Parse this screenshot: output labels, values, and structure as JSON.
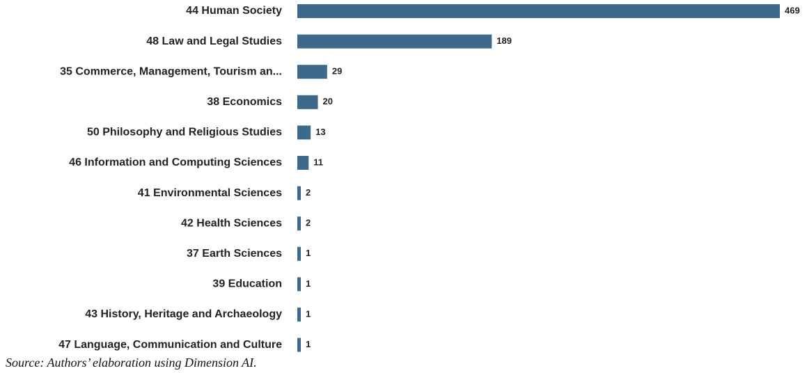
{
  "chart_data": {
    "type": "bar",
    "orientation": "horizontal",
    "categories": [
      "44 Human Society",
      "48 Law and Legal Studies",
      "35 Commerce, Management, Tourism an...",
      "38 Economics",
      "50 Philosophy and Religious Studies",
      "46 Information and Computing Sciences",
      "41 Environmental Sciences",
      "42 Health Sciences",
      "37 Earth Sciences",
      "39 Education",
      "43 History, Heritage and Archaeology",
      "47 Language, Communication and Culture"
    ],
    "values": [
      469,
      189,
      29,
      20,
      13,
      11,
      2,
      2,
      1,
      1,
      1,
      1
    ],
    "bar_color": "#3d6a8a",
    "grid": false,
    "legend": "none"
  },
  "source_note": "Source: Authors’ elaboration using Dimension AI."
}
